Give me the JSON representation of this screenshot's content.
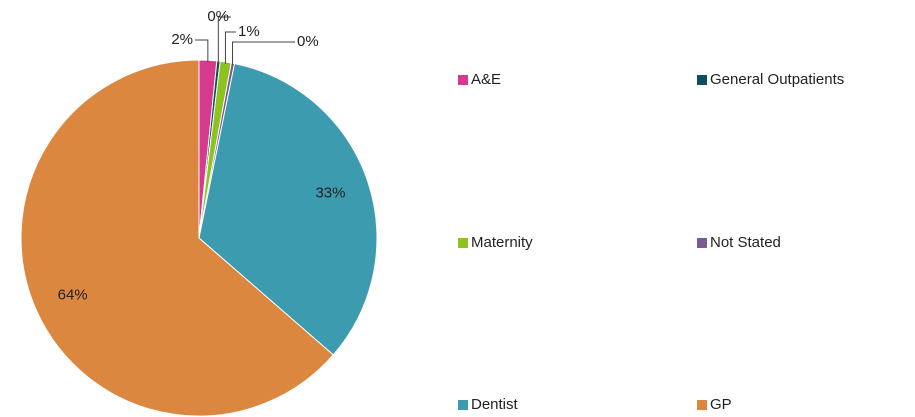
{
  "chart_data": {
    "type": "pie",
    "categories": [
      "A&E",
      "General Outpatients",
      "Maternity",
      "Not Stated",
      "Dentist",
      "GP"
    ],
    "values": [
      1.6,
      0.3,
      1.0,
      0.3,
      33.2,
      63.6
    ],
    "value_labels": [
      "2%",
      "0%",
      "1%",
      "0%",
      "33%",
      "64%"
    ],
    "colors": [
      "#d63a8e",
      "#0e4d5c",
      "#8dc21f",
      "#7a5a98",
      "#3d9bb0",
      "#dc8740"
    ],
    "legend": "right"
  }
}
